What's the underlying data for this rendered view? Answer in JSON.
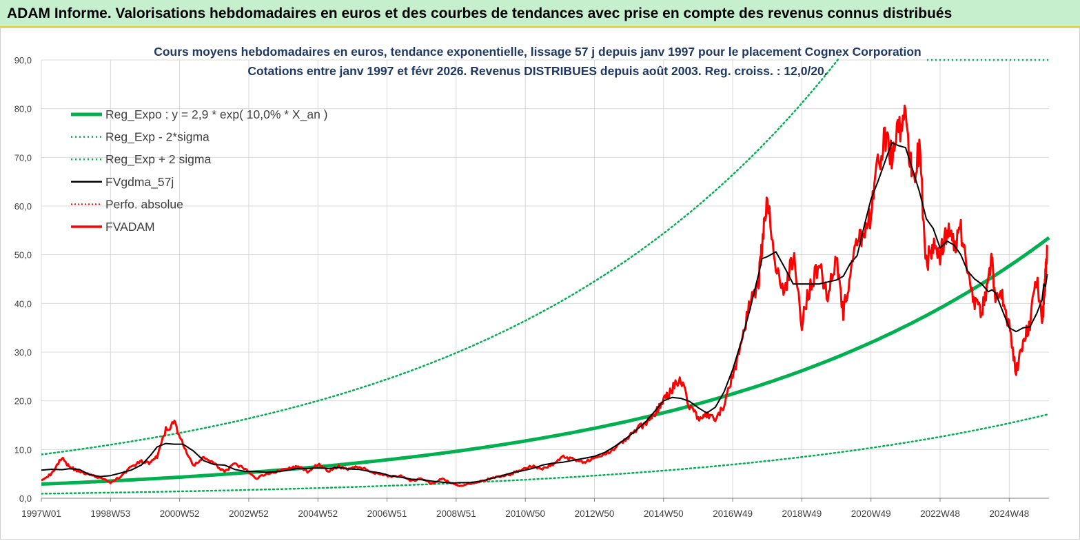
{
  "header": {
    "title": "ADAM Informe. Valorisations hebdomadaires en euros et des courbes de tendances avec prise en compte des revenus connus distribués"
  },
  "chart_data": {
    "type": "line",
    "title": "Cours moyens hebdomadaires en euros, tendance exponentielle, lissage 57 j depuis janv 1997 pour le placement Cognex Corporation",
    "subtitle": "Cotations entre janv 1997 et févr 2026. Revenus DISTRIBUES depuis août 2003. Reg. croiss. : 12,0/20.",
    "xlabel": "",
    "ylabel": "",
    "x_range": [
      1997.0,
      2026.15
    ],
    "ylim": [
      0,
      90
    ],
    "y_ticks": [
      "0,0",
      "10,0",
      "20,0",
      "30,0",
      "40,0",
      "50,0",
      "60,0",
      "70,0",
      "80,0",
      "90,0"
    ],
    "x_ticks": [
      "1997W01",
      "1998W53",
      "2000W52",
      "2002W52",
      "2004W52",
      "2006W51",
      "2008W51",
      "2010W50",
      "2012W50",
      "2014W50",
      "2016W49",
      "2018W49",
      "2020W49",
      "2022W48",
      "2024W48"
    ],
    "x_tick_years": [
      1997.0,
      1999.0,
      2001.0,
      2003.0,
      2005.0,
      2007.0,
      2009.0,
      2011.0,
      2013.0,
      2015.0,
      2017.0,
      2019.0,
      2021.0,
      2023.0,
      2025.0
    ],
    "grid": true,
    "legend_position": "top-left",
    "colors": {
      "trend": "#00b050",
      "smooth": "#000000",
      "price": "#ff0000",
      "perf": "#ff0000"
    },
    "regression": {
      "a": 2.9,
      "rate": 0.1,
      "sigma_factor_low": 0.323,
      "sigma_factor_high": 3.1
    },
    "series": [
      {
        "name": "Reg_Expo : y = 2,9 * exp( 10,0% *  X_an )",
        "style": "solid-thick-green"
      },
      {
        "name": "Reg_Exp - 2*sigma",
        "style": "dotted-green"
      },
      {
        "name": "Reg_Exp + 2 sigma",
        "style": "dotted-green"
      },
      {
        "name": "FVgdma_57j",
        "style": "solid-black"
      },
      {
        "name": "Perfo. absolue",
        "style": "dotted-red"
      },
      {
        "name": "FVADAM",
        "style": "solid-red",
        "x": [
          1997.0,
          1997.3,
          1997.6,
          1997.8,
          1998.1,
          1998.4,
          1998.7,
          1999.0,
          1999.3,
          1999.6,
          1999.9,
          2000.15,
          2000.35,
          2000.6,
          2000.85,
          2001.1,
          2001.4,
          2001.7,
          2002.0,
          2002.3,
          2002.6,
          2002.9,
          2003.2,
          2003.5,
          2003.8,
          2004.1,
          2004.4,
          2004.7,
          2005.0,
          2005.3,
          2005.6,
          2005.9,
          2006.2,
          2006.5,
          2006.8,
          2007.1,
          2007.4,
          2007.7,
          2008.0,
          2008.3,
          2008.6,
          2008.9,
          2009.1,
          2009.4,
          2009.7,
          2010.0,
          2010.3,
          2010.6,
          2010.9,
          2011.2,
          2011.5,
          2011.8,
          2012.1,
          2012.4,
          2012.7,
          2013.0,
          2013.3,
          2013.6,
          2013.9,
          2014.2,
          2014.5,
          2014.75,
          2015.0,
          2015.25,
          2015.5,
          2015.75,
          2016.0,
          2016.25,
          2016.5,
          2016.75,
          2017.0,
          2017.25,
          2017.5,
          2017.75,
          2017.85,
          2018.0,
          2018.25,
          2018.5,
          2018.75,
          2019.0,
          2019.25,
          2019.5,
          2019.75,
          2020.0,
          2020.2,
          2020.4,
          2020.6,
          2020.8,
          2021.0,
          2021.2,
          2021.4,
          2021.6,
          2021.8,
          2022.0,
          2022.2,
          2022.4,
          2022.6,
          2022.8,
          2023.0,
          2023.2,
          2023.4,
          2023.6,
          2023.8,
          2024.0,
          2024.2,
          2024.4,
          2024.5,
          2024.6,
          2024.8,
          2025.0,
          2025.2,
          2025.4,
          2025.6,
          2025.8,
          2025.95,
          2026.0,
          2026.05,
          2026.1
        ],
        "y": [
          3.8,
          5.0,
          8.5,
          6.5,
          5.5,
          4.8,
          4.2,
          3.2,
          4.5,
          6.5,
          7.5,
          7.2,
          8.5,
          14.0,
          15.5,
          11.0,
          6.5,
          8.5,
          7.0,
          5.5,
          7.0,
          6.0,
          4.0,
          5.0,
          5.5,
          6.0,
          6.5,
          5.5,
          7.0,
          5.5,
          6.5,
          6.0,
          6.5,
          5.5,
          5.0,
          4.5,
          4.5,
          3.5,
          4.0,
          3.0,
          4.0,
          3.0,
          2.5,
          3.0,
          3.5,
          4.0,
          4.5,
          5.0,
          6.0,
          6.5,
          6.0,
          7.0,
          8.5,
          8.0,
          7.5,
          8.0,
          9.0,
          10.5,
          12.0,
          14.0,
          15.5,
          17.5,
          20.0,
          22.5,
          24.5,
          19.0,
          16.5,
          17.0,
          16.0,
          19.0,
          25.0,
          32.0,
          40.0,
          45.0,
          52.0,
          61.0,
          48.0,
          42.0,
          50.0,
          36.0,
          44.0,
          48.0,
          42.0,
          50.0,
          38.0,
          46.0,
          52.0,
          55.0,
          58.0,
          68.0,
          74.0,
          70.0,
          75.0,
          78.0,
          65.0,
          72.0,
          48.0,
          52.0,
          50.0,
          55.0,
          52.0,
          55.0,
          48.0,
          40.0,
          38.0,
          44.0,
          50.0,
          40.0,
          42.0,
          35.0,
          26.0,
          32.0,
          36.0,
          46.0,
          36.0,
          40.0,
          46.0,
          52.0
        ]
      }
    ]
  }
}
